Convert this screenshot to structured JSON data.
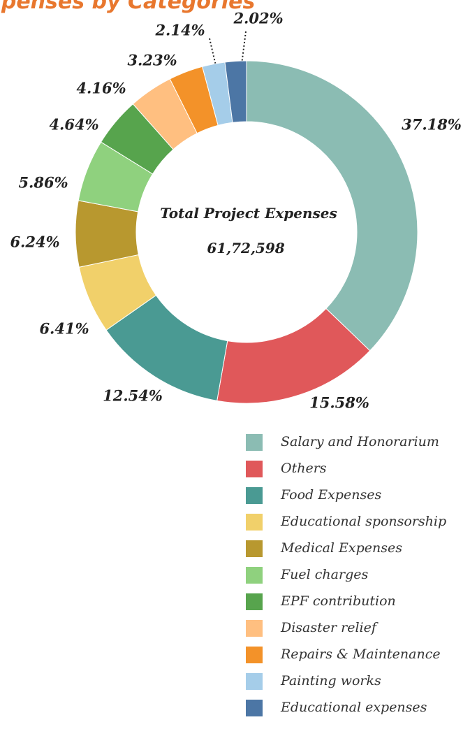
{
  "chart_data": {
    "type": "donut",
    "title": "Expenses by Categories",
    "categories": [
      "Salary and Honorarium",
      "Others",
      "Food Expenses",
      "Educational sponsorship",
      "Medical Expenses",
      "Fuel charges",
      "EPF contribution",
      "Disaster relief",
      "Repairs & Maintenance",
      "Painting works",
      "Educational expenses"
    ],
    "values": [
      37.18,
      15.58,
      12.54,
      6.41,
      6.24,
      5.86,
      4.64,
      4.16,
      3.23,
      2.14,
      2.02
    ],
    "value_labels": [
      "37.18%",
      "15.58%",
      "12.54%",
      "6.41%",
      "6.24%",
      "5.86%",
      "4.64%",
      "4.16%",
      "3.23%",
      "2.14%",
      "2.02%"
    ],
    "colors": [
      "#8bbcb3",
      "#e0585a",
      "#4a9a93",
      "#f1d06a",
      "#b8982f",
      "#8fd17e",
      "#57a44d",
      "#ffbf80",
      "#f39229",
      "#a5cde9",
      "#4c76a5"
    ],
    "annotations": [
      "Total Project Expenses",
      "61,72,598"
    ]
  }
}
